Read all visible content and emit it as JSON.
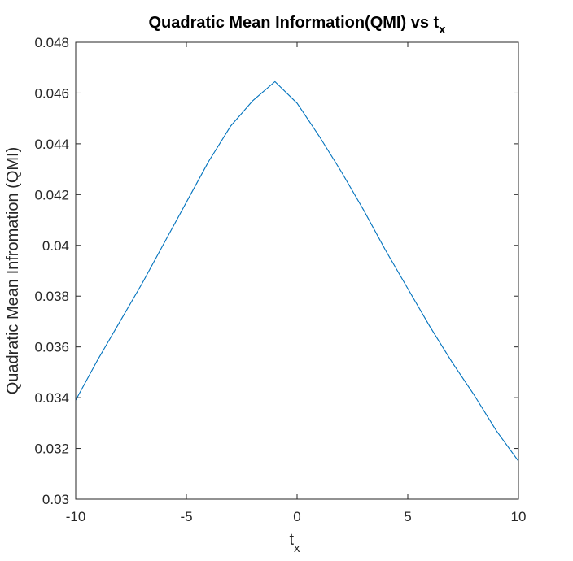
{
  "chart_data": {
    "type": "line",
    "title": "Quadratic Mean Information(QMI) vs t",
    "title_subscript": "x",
    "xlabel": "t",
    "xlabel_subscript": "x",
    "ylabel": "Quadratic Mean Infromation (QMI)",
    "xlim": [
      -10,
      10
    ],
    "ylim": [
      0.03,
      0.048
    ],
    "x_ticks": [
      -10,
      -5,
      0,
      5,
      10
    ],
    "x_tick_labels": [
      "-10",
      "-5",
      "0",
      "5",
      "10"
    ],
    "y_ticks": [
      0.03,
      0.032,
      0.034,
      0.036,
      0.038,
      0.04,
      0.042,
      0.044,
      0.046,
      0.048
    ],
    "y_tick_labels": [
      "0.03",
      "0.032",
      "0.034",
      "0.036",
      "0.038",
      "0.04",
      "0.042",
      "0.044",
      "0.046",
      "0.048"
    ],
    "grid": false,
    "box": true,
    "line_color": "#0072BD",
    "series": [
      {
        "x": [
          -10,
          -9,
          -8,
          -7,
          -6,
          -5,
          -4,
          -3,
          -2,
          -1,
          0,
          1,
          2,
          3,
          4,
          5,
          6,
          7,
          8,
          9,
          10
        ],
        "y": [
          0.0339,
          0.0355,
          0.037,
          0.0385,
          0.0401,
          0.0417,
          0.0433,
          0.0447,
          0.0457,
          0.04645,
          0.0456,
          0.0443,
          0.0429,
          0.0414,
          0.0398,
          0.0383,
          0.0368,
          0.0354,
          0.0341,
          0.0327,
          0.0315
        ]
      }
    ]
  }
}
